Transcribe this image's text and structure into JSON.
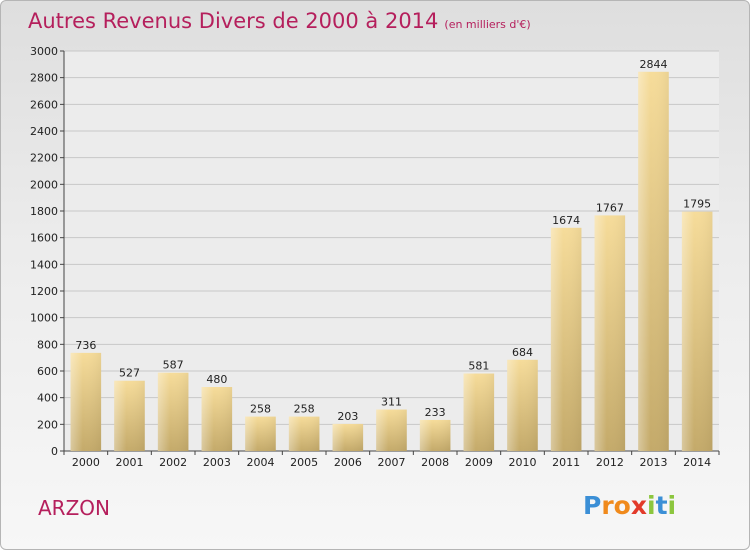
{
  "chart_data": {
    "type": "bar",
    "title": "Autres Revenus Divers de 2000 à 2014",
    "subtitle": "(en milliers d'€)",
    "categories": [
      "2000",
      "2001",
      "2002",
      "2003",
      "2004",
      "2005",
      "2006",
      "2007",
      "2008",
      "2009",
      "2010",
      "2011",
      "2012",
      "2013",
      "2014"
    ],
    "values": [
      736,
      527,
      587,
      480,
      258,
      258,
      203,
      311,
      233,
      581,
      684,
      1674,
      1767,
      2844,
      1795
    ],
    "ylim": [
      0,
      3000
    ],
    "yticks": [
      0,
      200,
      400,
      600,
      800,
      1000,
      1200,
      1400,
      1600,
      1800,
      2000,
      2200,
      2400,
      2600,
      2800,
      3000
    ],
    "grid": true,
    "bar_color_light": "#f6dc9a",
    "bar_color_dark": "#c4aa6a"
  },
  "place": "ARZON",
  "logo": {
    "text": "Proxiti",
    "letters": [
      "P",
      "r",
      "o",
      "x",
      "i",
      "t",
      "i"
    ],
    "colors": [
      "#3b8fd6",
      "#f08a1c",
      "#f08a1c",
      "#e23a2a",
      "#8cc63e",
      "#3b8fd6",
      "#8cc63e"
    ]
  }
}
